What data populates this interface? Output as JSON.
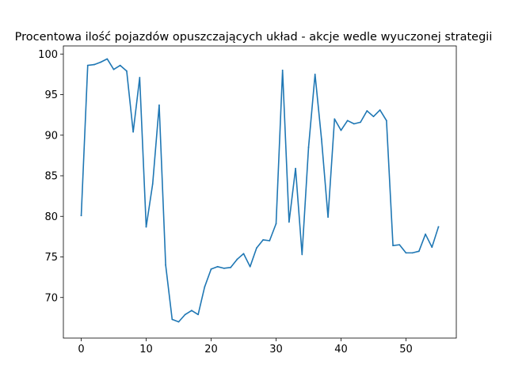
{
  "chart_data": {
    "type": "line",
    "title": "Procentowa ilość pojazdów opuszczających układ - akcje wedle wyuczonej strategii",
    "xlabel": "",
    "ylabel": "",
    "xlim": [
      -2.75,
      57.75
    ],
    "ylim": [
      65,
      101
    ],
    "xticks": [
      0,
      10,
      20,
      30,
      40,
      50
    ],
    "yticks": [
      70,
      75,
      80,
      85,
      90,
      95,
      100
    ],
    "grid": false,
    "line_color": "#1f77b4",
    "series": [
      {
        "x": [
          0,
          1,
          2,
          3,
          4,
          5,
          6,
          7,
          8,
          9,
          10,
          11,
          12,
          13,
          14,
          15,
          16,
          17,
          18,
          19,
          20,
          21,
          22,
          23,
          24,
          25,
          26,
          27,
          28,
          29,
          30,
          31,
          32,
          33,
          34,
          35,
          36,
          37,
          38,
          39,
          40,
          41,
          42,
          43,
          44,
          45,
          46,
          47,
          48,
          49,
          50,
          51,
          52,
          53,
          54,
          55
        ],
        "values": [
          80.1,
          98.6,
          98.7,
          99.0,
          99.4,
          98.1,
          98.6,
          97.9,
          90.4,
          97.1,
          78.7,
          84.0,
          93.7,
          74.0,
          67.3,
          67.0,
          67.9,
          68.4,
          67.9,
          71.3,
          73.5,
          73.8,
          73.6,
          73.7,
          74.7,
          75.4,
          73.8,
          76.1,
          77.1,
          77.0,
          79.1,
          98.0,
          79.3,
          85.9,
          75.3,
          88.5,
          97.5,
          89.5,
          79.9,
          92.0,
          90.6,
          91.8,
          91.4,
          91.6,
          93.0,
          92.3,
          93.1,
          91.8,
          76.4,
          76.5,
          75.5,
          75.5,
          75.7,
          77.8,
          76.2,
          78.7
        ]
      }
    ]
  }
}
